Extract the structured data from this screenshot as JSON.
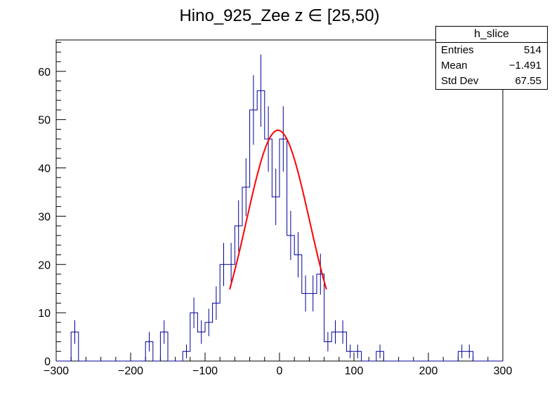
{
  "chart_data": {
    "type": "bar",
    "title": "Hino_925_Zee z  ∈ [25,50)",
    "xlabel": "",
    "ylabel": "",
    "xlim": [
      -300,
      300
    ],
    "ylim": [
      0,
      66.5
    ],
    "x_ticks": [
      "−300",
      "−200",
      "−100",
      "0",
      "100",
      "200",
      "300"
    ],
    "y_ticks": [
      "0",
      "10",
      "20",
      "30",
      "40",
      "50",
      "60"
    ],
    "grid": false,
    "bin_width": 10,
    "bin_start": -300,
    "histogram_color": "#000099",
    "fit_color": "#ff0000",
    "values": [
      0,
      0,
      6,
      0,
      0,
      0,
      0,
      0,
      0,
      0,
      0,
      0,
      4,
      0,
      6,
      0,
      0,
      2,
      10,
      6,
      8,
      12,
      20,
      20,
      28,
      36,
      52,
      56,
      46,
      34,
      46,
      26,
      22,
      14,
      14,
      18,
      4,
      6,
      6,
      2,
      2,
      0,
      0,
      2,
      0,
      0,
      0,
      0,
      0,
      0,
      0,
      0,
      0,
      0,
      2,
      2,
      0,
      0,
      0,
      0
    ],
    "fit": {
      "function": "gaussian",
      "amplitude": 47.8,
      "mean": -2.0,
      "sigma": 42.5,
      "range": [
        -67,
        63
      ]
    },
    "stats": {
      "name": "h_slice",
      "rows": [
        {
          "label": "Entries",
          "value": "514"
        },
        {
          "label": "Mean",
          "value": "−1.491"
        },
        {
          "label": "Std Dev",
          "value": "67.55"
        }
      ]
    }
  }
}
